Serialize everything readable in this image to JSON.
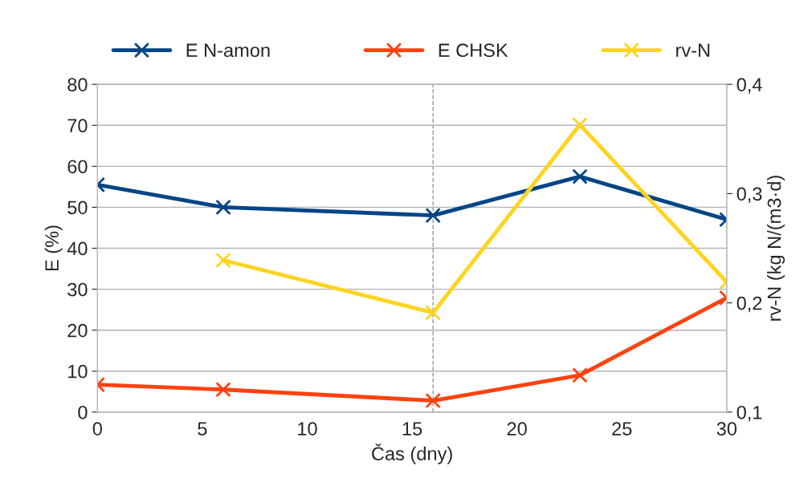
{
  "chart_data": {
    "type": "line",
    "xlabel": "Čas (dny)",
    "ylabel": "E (%)",
    "y2label": "rv-N (kg N/(m3·d)",
    "x": [
      0,
      6,
      16,
      23,
      30
    ],
    "series": [
      {
        "name": "E N-amon",
        "color": "#004586",
        "values": [
          55.5,
          50,
          48,
          57.5,
          47
        ]
      },
      {
        "name": "E CHSK",
        "color": "#ff420e",
        "values": [
          6.7,
          5.5,
          2.8,
          9,
          27.9
        ]
      },
      {
        "name": "rv-N",
        "color": "#ffd320",
        "axis": "y2",
        "values": [
          null,
          0.239,
          0.191,
          0.363,
          0.219
        ]
      }
    ],
    "xlim": [
      0,
      30
    ],
    "xticks": [
      0,
      5,
      10,
      15,
      20,
      25,
      30
    ],
    "ylim": [
      0,
      80
    ],
    "yticks": [
      0,
      10,
      20,
      30,
      40,
      50,
      60,
      70,
      80
    ],
    "y2lim": [
      0.1,
      0.4
    ],
    "y2ticks": [
      {
        "value": 0.1,
        "label": "0,1"
      },
      {
        "value": 0.2,
        "label": "0,2"
      },
      {
        "value": 0.3,
        "label": "0,3"
      },
      {
        "value": 0.4,
        "label": "0,4"
      }
    ],
    "ref_lines": [
      {
        "axis": "x",
        "value": 16,
        "color": "#999999",
        "line_style": "dashed"
      }
    ],
    "grid": "y",
    "legend": "top",
    "marker": "cross",
    "line_style": "solid"
  }
}
